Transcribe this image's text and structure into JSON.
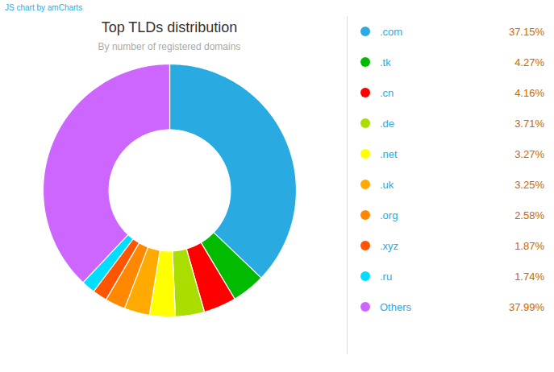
{
  "chart_data": {
    "type": "donut",
    "title": "Top TLDs distribution",
    "subtitle": "By number of registered domains",
    "annotations": [
      "JS chart by amCharts"
    ],
    "categories": [
      ".com",
      ".tk",
      ".cn",
      ".de",
      ".net",
      ".uk",
      ".org",
      ".xyz",
      ".ru",
      "Others"
    ],
    "values": [
      37.15,
      4.27,
      4.16,
      3.71,
      3.27,
      3.25,
      2.58,
      1.87,
      1.74,
      37.99
    ],
    "value_labels": [
      "37.15%",
      "4.27%",
      "4.16%",
      "3.71%",
      "3.27%",
      "3.25%",
      "2.58%",
      "1.87%",
      "1.74%",
      "37.99%"
    ],
    "colors": [
      "#29ABE2",
      "#00BB00",
      "#FF0000",
      "#AADD00",
      "#FFFF00",
      "#FFAA00",
      "#FF8800",
      "#FF5500",
      "#00DDFF",
      "#CC66FF"
    ],
    "legend": "right"
  }
}
